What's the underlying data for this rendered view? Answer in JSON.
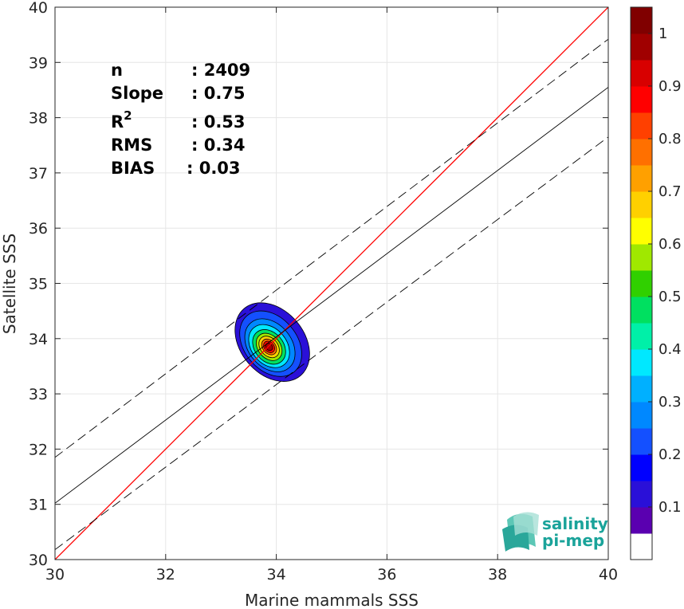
{
  "chart_data": {
    "type": "scatter",
    "subtype": "density-contour",
    "xlabel": "Marine mammals SSS",
    "ylabel": "Satellite SSS",
    "xlim": [
      30,
      40
    ],
    "ylim": [
      30,
      40
    ],
    "xticks": [
      30,
      32,
      34,
      36,
      38,
      40
    ],
    "yticks": [
      30,
      31,
      32,
      33,
      34,
      35,
      36,
      37,
      38,
      39,
      40
    ],
    "grid": true,
    "stats": [
      {
        "label": "n",
        "value": ": 2409"
      },
      {
        "label": "Slope",
        "value": ": 0.75"
      },
      {
        "label": "R",
        "sup": "2",
        "value": ": 0.53"
      },
      {
        "label": "RMS",
        "value": ": 0.34"
      },
      {
        "label": "BIAS",
        "value": ": 0.03"
      }
    ],
    "lines": [
      {
        "kind": "identity",
        "color": "#ff0000",
        "x": [
          30,
          40
        ],
        "y": [
          30,
          40
        ]
      },
      {
        "kind": "fit",
        "color": "#000000",
        "x": [
          30,
          40
        ],
        "y": [
          31.02,
          38.55
        ]
      },
      {
        "kind": "fit-upper",
        "color": "#000000",
        "dashed": true,
        "x": [
          30,
          40
        ],
        "y": [
          31.85,
          39.42
        ]
      },
      {
        "kind": "fit-lower",
        "color": "#000000",
        "dashed": true,
        "x": [
          30,
          40
        ],
        "y": [
          30.18,
          37.65
        ]
      }
    ],
    "density_peak": {
      "x": 33.87,
      "y": 33.85
    },
    "colorbar": {
      "ticks": [
        0.1,
        0.2,
        0.3,
        0.4,
        0.5,
        0.6,
        0.7,
        0.8,
        0.9,
        1
      ],
      "tick_labels": [
        "0.1",
        "0.2",
        "0.3",
        "0.4",
        "0.5",
        "0.6",
        "0.7",
        "0.8",
        "0.9",
        "1"
      ],
      "colors": [
        "#ffffff",
        "#5a00b0",
        "#2a10d8",
        "#0000ff",
        "#1450ff",
        "#0088ff",
        "#00b0ff",
        "#00e8ff",
        "#00f0a8",
        "#00e060",
        "#30d000",
        "#a0e800",
        "#ffff00",
        "#ffd000",
        "#ffa000",
        "#ff7000",
        "#ff4000",
        "#ff0000",
        "#d80000",
        "#a00000",
        "#800000"
      ]
    }
  },
  "logo": {
    "line1": "salinity",
    "line2": "pi-mep"
  }
}
